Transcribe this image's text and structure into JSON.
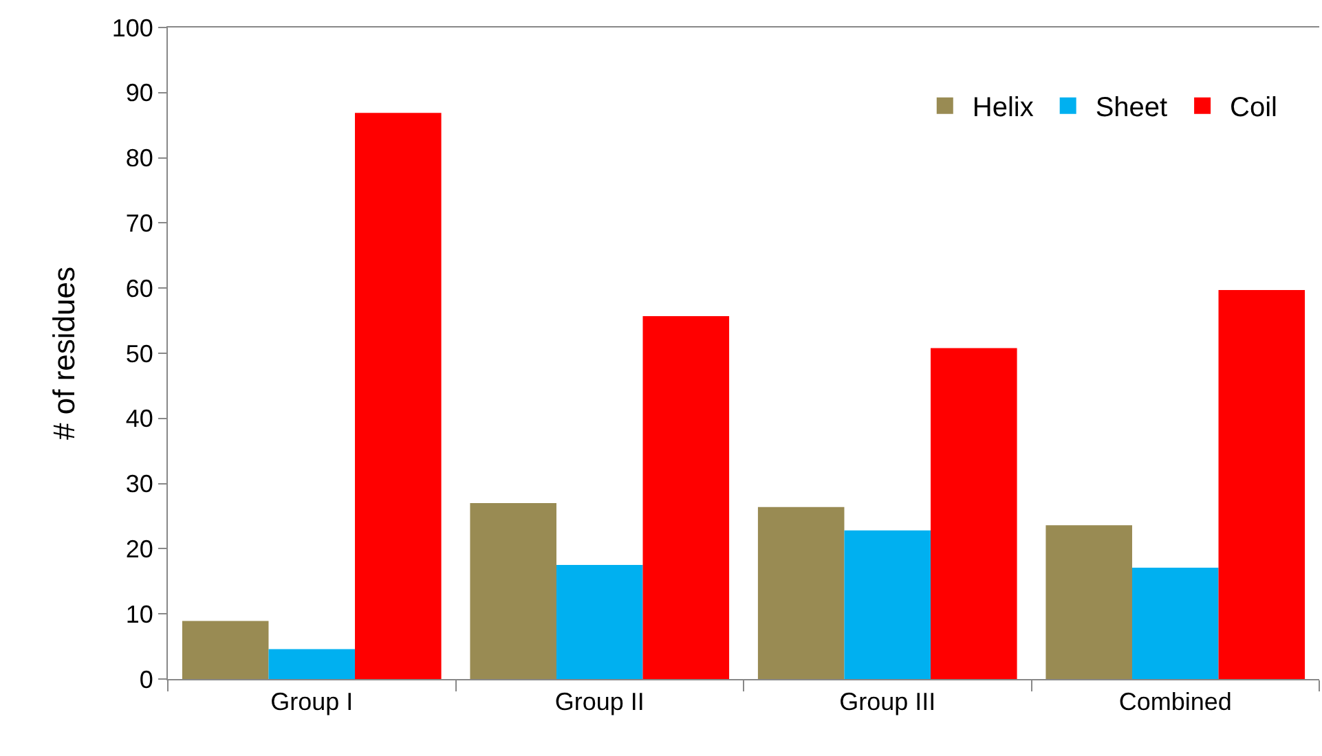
{
  "chart_data": {
    "type": "bar",
    "ylabel": "# of residues",
    "categories": [
      "Group I",
      "Group II",
      "Group III",
      "Combined"
    ],
    "series": [
      {
        "name": "Helix",
        "color": "#998b53",
        "values": [
          8.9,
          27.0,
          26.4,
          23.6
        ]
      },
      {
        "name": "Sheet",
        "color": "#00b0f0",
        "values": [
          4.6,
          17.5,
          22.8,
          17.1
        ]
      },
      {
        "name": "Coil",
        "color": "#ff0000",
        "values": [
          86.9,
          55.7,
          50.8,
          59.7
        ]
      }
    ],
    "ylim": [
      0,
      100
    ],
    "yticks": [
      0,
      10,
      20,
      30,
      40,
      50,
      60,
      70,
      80,
      90,
      100
    ],
    "legend": "top right"
  }
}
